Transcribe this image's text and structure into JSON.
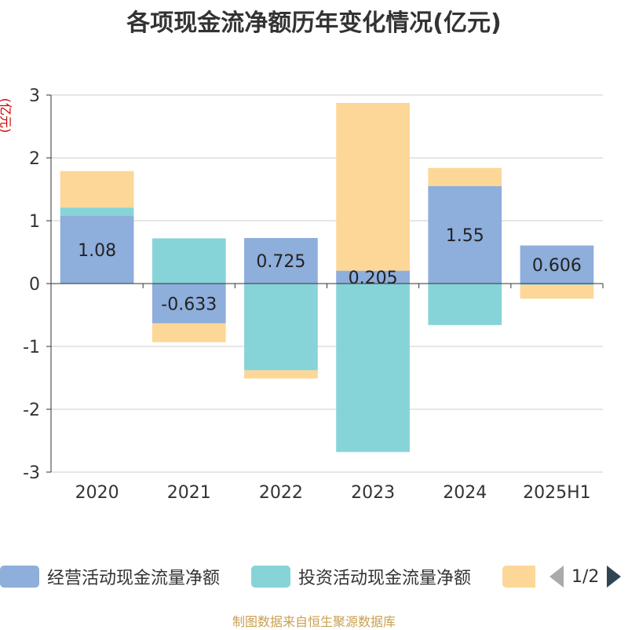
{
  "title": "各项现金流净额历年变化情况(亿元)",
  "unit_label": "(亿元)",
  "footer": "制图数据来自恒生聚源数据库",
  "legend": {
    "items": [
      {
        "label": "经营活动现金流量净额",
        "color": "#8eaedb"
      },
      {
        "label": "投资活动现金流量净额",
        "color": "#87d4d8"
      },
      {
        "label": "",
        "color": "#fdd797"
      }
    ],
    "page_text": "1/2"
  },
  "chart_data": {
    "type": "bar",
    "stacked": true,
    "categories": [
      "2020",
      "2021",
      "2022",
      "2023",
      "2024",
      "2025H1"
    ],
    "series": [
      {
        "name": "经营活动现金流量净额",
        "color": "#8eaedb",
        "values": [
          1.08,
          -0.633,
          0.725,
          0.205,
          1.55,
          0.606
        ],
        "labels": [
          "1.08",
          "-0.633",
          "0.725",
          "0.205",
          "1.55",
          "0.606"
        ]
      },
      {
        "name": "投资活动现金流量净额",
        "color": "#87d4d8",
        "values": [
          0.13,
          0.72,
          -1.38,
          -2.68,
          -0.66,
          -0.02
        ]
      },
      {
        "name": "",
        "color": "#fdd797",
        "values": [
          0.58,
          -0.3,
          -0.13,
          2.67,
          0.29,
          -0.22
        ]
      }
    ],
    "ylim": [
      -3,
      3
    ],
    "yticks": [
      "-3",
      "-2",
      "-1",
      "0",
      "1",
      "2",
      "3"
    ],
    "grid": true
  }
}
